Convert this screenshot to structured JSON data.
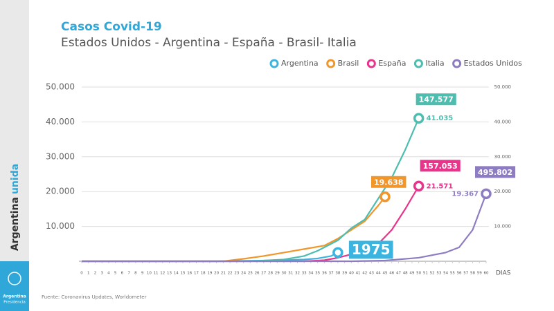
{
  "chart_data": {
    "type": "line",
    "title": "Casos Covid-19",
    "subtitle": "Estados Unidos - Argentina - España - Brasil- Italia",
    "x_label": "DIAS",
    "source": "Fuente: Coronavirus Updates, Worldometer",
    "sidebar": {
      "brand_dark": "Argentina",
      "brand_light": "unida",
      "logo_line1": "Argentina",
      "logo_line2": "Presidencia"
    },
    "xlim": [
      0,
      60
    ],
    "xticks": [
      0,
      1,
      2,
      3,
      4,
      5,
      6,
      7,
      8,
      9,
      10,
      11,
      12,
      13,
      14,
      15,
      16,
      17,
      18,
      19,
      20,
      21,
      22,
      23,
      24,
      25,
      26,
      27,
      28,
      29,
      30,
      31,
      32,
      33,
      34,
      35,
      36,
      37,
      38,
      39,
      40,
      41,
      42,
      43,
      44,
      45,
      46,
      47,
      48,
      49,
      50,
      51,
      52,
      53,
      54,
      55,
      56,
      57,
      58,
      59,
      60
    ],
    "ylim": [
      0,
      50000
    ],
    "yticks": [
      {
        "value": 10000,
        "label": "10.000"
      },
      {
        "value": 20000,
        "label": "20.000"
      },
      {
        "value": 30000,
        "label": "30.000"
      },
      {
        "value": 40000,
        "label": "40.000"
      },
      {
        "value": 50000,
        "label": "50.000"
      }
    ],
    "y2lim": [
      0,
      50000
    ],
    "y2ticks": [
      {
        "value": 10000,
        "label": "10.000"
      },
      {
        "value": 20000,
        "label": "20.000"
      },
      {
        "value": 30000,
        "label": "30.000"
      },
      {
        "value": 40000,
        "label": "40.000"
      },
      {
        "value": 50000,
        "label": "50.000"
      }
    ],
    "grid": true,
    "series": [
      {
        "name": "Argentina",
        "color": "#3bb5e0",
        "x": [
          0,
          20,
          30,
          33,
          35,
          37,
          38
        ],
        "values": [
          0,
          0,
          300,
          500,
          800,
          1500,
          2500
        ],
        "annotation": "1975"
      },
      {
        "name": "Brasil",
        "color": "#f2962a",
        "x": [
          0,
          21,
          24,
          27,
          30,
          33,
          36,
          38,
          40,
          42,
          44,
          45
        ],
        "values": [
          0,
          0,
          700,
          1500,
          2500,
          3500,
          4500,
          6500,
          9000,
          11500,
          16000,
          18500
        ],
        "annotation": "19.638"
      },
      {
        "name": "España",
        "color": "#e8348a",
        "x": [
          0,
          33,
          36,
          38,
          40,
          42,
          44,
          46,
          48,
          50
        ],
        "values": [
          0,
          0,
          300,
          1000,
          2000,
          3000,
          5000,
          9000,
          15000,
          21571
        ],
        "annotation": "157.053",
        "end_label": "21.571"
      },
      {
        "name": "Italia",
        "color": "#4dbdb0",
        "x": [
          0,
          25,
          30,
          33,
          35,
          38,
          40,
          42,
          44,
          46,
          48,
          50
        ],
        "values": [
          0,
          0,
          500,
          1500,
          3000,
          6000,
          9500,
          12000,
          18000,
          24000,
          32000,
          41035
        ],
        "annotation": "147.577",
        "end_label": "41.035"
      },
      {
        "name": "Estados Unidos",
        "color": "#8e7cc3",
        "x": [
          0,
          40,
          45,
          50,
          54,
          56,
          58,
          60
        ],
        "values": [
          0,
          0,
          200,
          1000,
          2500,
          4000,
          9000,
          19367
        ],
        "annotation": "495.802",
        "end_label": "19.367"
      }
    ]
  }
}
